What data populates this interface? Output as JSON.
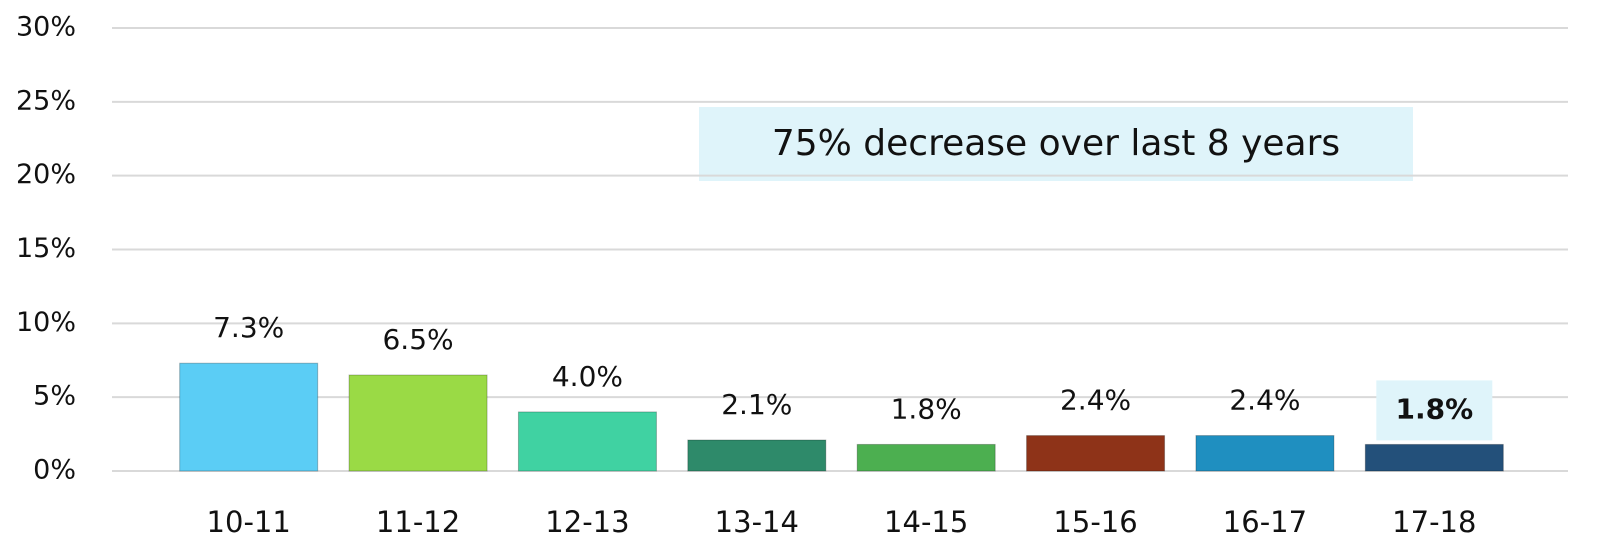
{
  "chart_data": {
    "type": "bar",
    "categories": [
      "10-11",
      "11-12",
      "12-13",
      "13-14",
      "14-15",
      "15-16",
      "16-17",
      "17-18"
    ],
    "values": [
      7.3,
      6.5,
      4.0,
      2.1,
      1.8,
      2.4,
      2.4,
      1.8
    ],
    "value_labels": [
      "7.3%",
      "6.5%",
      "4.0%",
      "2.1%",
      "1.8%",
      "2.4%",
      "2.4%",
      "1.8%"
    ],
    "colors": [
      "#5bcdf5",
      "#9ada45",
      "#40d2a2",
      "#2e8a6a",
      "#4caf50",
      "#8e3318",
      "#1f8fc0",
      "#23507a"
    ],
    "ylim": [
      0,
      30
    ],
    "yticks": [
      {
        "value": 0,
        "label": "0%"
      },
      {
        "value": 5,
        "label": "5%"
      },
      {
        "value": 10,
        "label": "10%"
      },
      {
        "value": 15,
        "label": "15%"
      },
      {
        "value": 20,
        "label": "20%"
      },
      {
        "value": 25,
        "label": "25%"
      },
      {
        "value": 30,
        "label": "30%"
      }
    ],
    "grid": true,
    "annotations": [
      "75% decrease over last 8 years"
    ]
  }
}
